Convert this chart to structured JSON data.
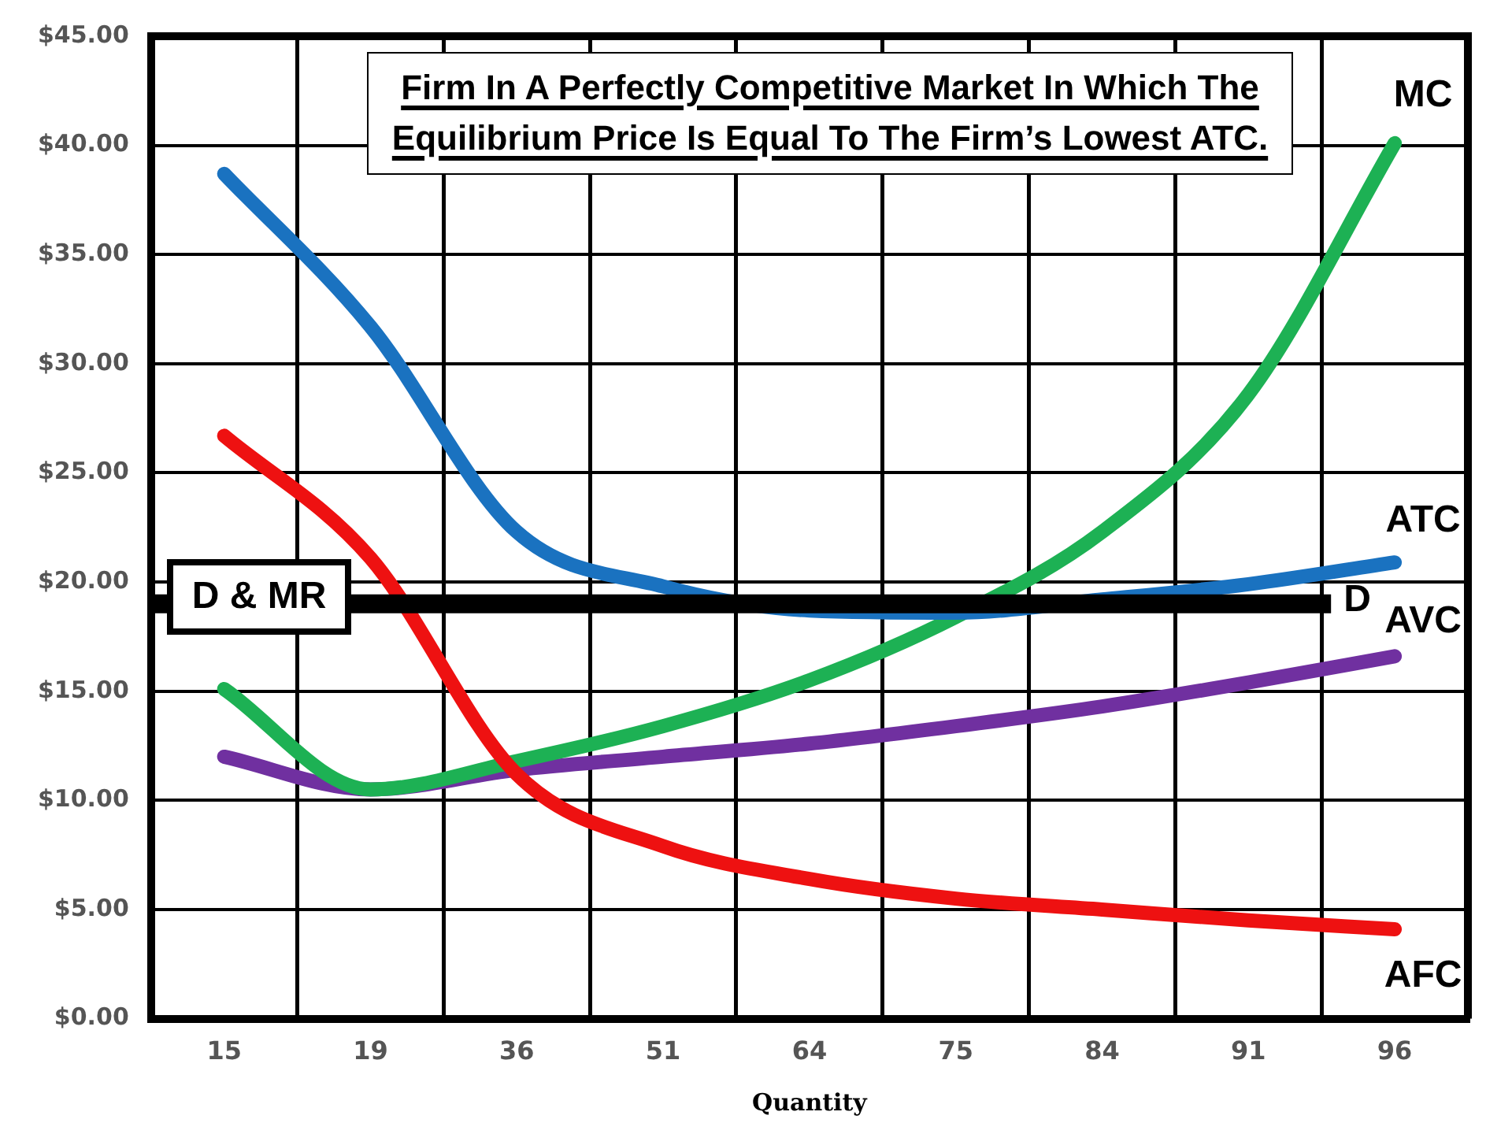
{
  "chart_data": {
    "type": "line",
    "title": "Firm In A Perfectly Competitive Market In Which The Equilibrium Price Is Equal To The Firm’s Lowest ATC.",
    "xlabel": "Quantity",
    "categories": [
      "15",
      "19",
      "36",
      "51",
      "64",
      "75",
      "84",
      "91",
      "96"
    ],
    "series": [
      {
        "name": "ATC",
        "color": "#1a72c0",
        "values": [
          38.7,
          31.7,
          22.3,
          19.8,
          18.7,
          18.6,
          19.2,
          19.9,
          20.9
        ]
      },
      {
        "name": "AFC",
        "color": "#ee1111",
        "values": [
          26.7,
          21.1,
          11.2,
          7.9,
          6.4,
          5.5,
          5.0,
          4.5,
          4.1
        ]
      },
      {
        "name": "MC",
        "color": "#1db154",
        "values": [
          15.1,
          10.5,
          11.8,
          13.4,
          15.5,
          18.4,
          22.3,
          28.6,
          40.1
        ]
      },
      {
        "name": "AVC",
        "color": "#7030a0",
        "values": [
          12.0,
          10.5,
          11.4,
          12.0,
          12.6,
          13.4,
          14.3,
          15.4,
          16.6
        ]
      }
    ],
    "ref_lines": [
      {
        "axis": "y",
        "value": 19,
        "label": "D & MR",
        "color": "#000000"
      }
    ],
    "annotations": [
      "D"
    ],
    "ylim": [
      0,
      45
    ],
    "yticks": [
      {
        "value": 0,
        "label": "$0.00"
      },
      {
        "value": 5,
        "label": "$5.00"
      },
      {
        "value": 10,
        "label": "$10.00"
      },
      {
        "value": 15,
        "label": "$15.00"
      },
      {
        "value": 20,
        "label": "$20.00"
      },
      {
        "value": 25,
        "label": "$25.00"
      },
      {
        "value": 30,
        "label": "$30.00"
      },
      {
        "value": 35,
        "label": "$35.00"
      },
      {
        "value": 40,
        "label": "$40.00"
      },
      {
        "value": 45,
        "label": "$45.00"
      }
    ],
    "grid": true,
    "legend": false,
    "marker": "none",
    "line_style": "solid"
  }
}
